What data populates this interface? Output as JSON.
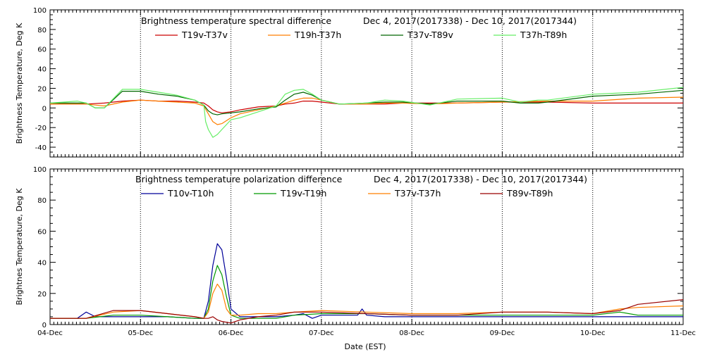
{
  "figure": {
    "xlabel": "Date (EST)"
  },
  "chart_data": [
    {
      "type": "line",
      "title": "Brightness temperature spectral difference",
      "subtitle": "Dec  4, 2017(2017338) - Dec 10, 2017(2017344)",
      "ylabel": "Brightness Temperature, Deg K",
      "xlabel": "",
      "xlim": [
        0,
        7
      ],
      "ylim": [
        -50,
        100
      ],
      "yticks": [
        -40,
        -20,
        0,
        20,
        40,
        60,
        80,
        100
      ],
      "xticks": [],
      "grid": "vertical dotted at day boundaries",
      "legend_placement": "top",
      "series": [
        {
          "name": "T19v-T37v",
          "color": "#cc0000",
          "x": [
            0,
            0.4,
            0.6,
            0.8,
            1.0,
            1.2,
            1.4,
            1.6,
            1.7,
            1.75,
            1.8,
            1.85,
            1.9,
            2.0,
            2.1,
            2.3,
            2.5,
            2.6,
            2.7,
            2.8,
            2.9,
            3.0,
            3.2,
            3.5,
            3.7,
            3.9,
            4.2,
            4.5,
            5.0,
            5.5,
            6.0,
            6.5,
            7.0
          ],
          "y": [
            4,
            4,
            5,
            7,
            8,
            7,
            7,
            6,
            5,
            2,
            -2,
            -4,
            -5,
            -4,
            -2,
            1,
            2,
            4,
            5,
            7,
            7,
            6,
            4,
            4,
            4,
            5,
            5,
            5,
            6,
            6,
            5,
            5,
            5
          ]
        },
        {
          "name": "T19h-T37h",
          "color": "#ff7f00",
          "x": [
            0,
            0.4,
            0.5,
            0.6,
            0.8,
            1.0,
            1.2,
            1.4,
            1.6,
            1.7,
            1.75,
            1.8,
            1.85,
            1.9,
            2.0,
            2.1,
            2.3,
            2.5,
            2.6,
            2.7,
            2.8,
            2.9,
            3.0,
            3.2,
            3.5,
            3.7,
            3.9,
            4.2,
            4.5,
            5.0,
            5.5,
            6.0,
            6.5,
            7.0
          ],
          "y": [
            4,
            4,
            3,
            2,
            6,
            8,
            7,
            6,
            5,
            2,
            -6,
            -14,
            -17,
            -16,
            -10,
            -6,
            -2,
            2,
            5,
            8,
            10,
            10,
            8,
            4,
            4,
            5,
            5,
            4,
            5,
            6,
            7,
            7,
            10,
            11
          ]
        },
        {
          "name": "T37v-T89v",
          "color": "#006600",
          "x": [
            0,
            0.4,
            0.5,
            0.6,
            0.8,
            1.0,
            1.2,
            1.4,
            1.6,
            1.7,
            1.75,
            1.8,
            1.85,
            1.9,
            2.0,
            2.1,
            2.3,
            2.5,
            2.6,
            2.7,
            2.8,
            2.9,
            3.0,
            3.2,
            3.5,
            3.7,
            3.9,
            4.2,
            4.5,
            5.0,
            5.2,
            5.4,
            5.5,
            6.0,
            6.5,
            7.0
          ],
          "y": [
            5,
            5,
            0,
            0,
            17,
            17,
            14,
            12,
            8,
            3,
            -3,
            -6,
            -7,
            -6,
            -5,
            -4,
            -1,
            1,
            8,
            14,
            16,
            13,
            8,
            4,
            5,
            6,
            6,
            4,
            7,
            7,
            5,
            5,
            6,
            12,
            14,
            18
          ]
        },
        {
          "name": "T37h-T89h",
          "color": "#66ee66",
          "x": [
            0,
            0.3,
            0.4,
            0.5,
            0.6,
            0.8,
            1.0,
            1.2,
            1.4,
            1.6,
            1.7,
            1.72,
            1.75,
            1.8,
            1.85,
            1.9,
            2.0,
            2.1,
            2.3,
            2.5,
            2.6,
            2.7,
            2.8,
            2.9,
            3.0,
            3.2,
            3.5,
            3.7,
            3.9,
            4.2,
            4.5,
            5.0,
            5.2,
            5.4,
            5.5,
            6.0,
            6.5,
            7.0
          ],
          "y": [
            5,
            7,
            5,
            0,
            0,
            19,
            19,
            16,
            13,
            8,
            3,
            -14,
            -22,
            -30,
            -27,
            -22,
            -12,
            -10,
            -4,
            2,
            14,
            18,
            19,
            14,
            8,
            4,
            5,
            8,
            7,
            3,
            9,
            10,
            6,
            8,
            8,
            14,
            16,
            21
          ]
        }
      ]
    },
    {
      "type": "line",
      "title": "Brightness temperature polarization difference",
      "subtitle": "Dec  4, 2017(2017338) - Dec 10, 2017(2017344)",
      "ylabel": "Brightnes Temperature, Deg K",
      "xlabel": "Date (EST)",
      "xlim": [
        0,
        7
      ],
      "ylim": [
        0,
        100
      ],
      "yticks": [
        0,
        20,
        40,
        60,
        80,
        100
      ],
      "xticks": [
        "04-Dec",
        "05-Dec",
        "06-Dec",
        "07-Dec",
        "08-Dec",
        "09-Dec",
        "10-Dec",
        "11-Dec"
      ],
      "grid": "vertical dotted at day boundaries",
      "legend_placement": "top",
      "series": [
        {
          "name": "T10v-T10h",
          "color": "#000099",
          "x": [
            0,
            0.3,
            0.4,
            0.5,
            0.7,
            1.0,
            1.3,
            1.6,
            1.7,
            1.75,
            1.8,
            1.85,
            1.9,
            1.95,
            2.0,
            2.1,
            2.2,
            2.5,
            2.7,
            2.8,
            2.9,
            3.0,
            3.2,
            3.4,
            3.45,
            3.5,
            3.7,
            4.0,
            4.5,
            5.0,
            5.5,
            6.0,
            6.5,
            7.0
          ],
          "y": [
            4,
            4,
            8,
            5,
            5,
            5,
            5,
            4,
            4,
            15,
            38,
            52,
            48,
            30,
            10,
            5,
            5,
            5,
            6,
            7,
            4,
            6,
            6,
            6,
            10,
            6,
            5,
            5,
            5,
            5,
            5,
            5,
            5,
            5
          ]
        },
        {
          "name": "T19v-T19h",
          "color": "#009900",
          "x": [
            0,
            0.4,
            0.7,
            1.0,
            1.3,
            1.6,
            1.7,
            1.75,
            1.8,
            1.85,
            1.9,
            1.95,
            2.0,
            2.1,
            2.3,
            2.5,
            2.7,
            3.0,
            3.5,
            4.0,
            4.5,
            5.0,
            5.5,
            6.0,
            6.3,
            6.5,
            7.0
          ],
          "y": [
            4,
            4,
            6,
            6,
            5,
            4,
            4,
            10,
            28,
            38,
            32,
            18,
            6,
            4,
            4,
            4,
            6,
            7,
            7,
            6,
            6,
            6,
            6,
            6,
            8,
            6,
            6
          ]
        },
        {
          "name": "T37v-T37h",
          "color": "#ff7f00",
          "x": [
            0,
            0.4,
            0.7,
            1.0,
            1.3,
            1.6,
            1.7,
            1.75,
            1.8,
            1.85,
            1.9,
            1.95,
            2.0,
            2.1,
            2.3,
            2.5,
            2.7,
            3.0,
            3.5,
            4.0,
            4.5,
            5.0,
            5.5,
            6.0,
            6.3,
            6.5,
            7.0
          ],
          "y": [
            4,
            4,
            8,
            9,
            7,
            5,
            4,
            8,
            20,
            26,
            22,
            10,
            6,
            6,
            7,
            7,
            8,
            9,
            8,
            7,
            7,
            8,
            8,
            7,
            10,
            11,
            12
          ]
        },
        {
          "name": "T89v-T89h",
          "color": "#990000",
          "x": [
            0,
            0.4,
            0.7,
            1.0,
            1.3,
            1.6,
            1.7,
            1.75,
            1.8,
            1.85,
            1.9,
            2.0,
            2.1,
            2.3,
            2.5,
            2.7,
            3.0,
            3.5,
            4.0,
            4.5,
            5.0,
            5.5,
            6.0,
            6.3,
            6.5,
            7.0
          ],
          "y": [
            4,
            4,
            9,
            9,
            7,
            5,
            4,
            4,
            5,
            3,
            2,
            1,
            3,
            5,
            6,
            8,
            8,
            7,
            6,
            6,
            8,
            8,
            7,
            9,
            13,
            16
          ]
        }
      ]
    }
  ]
}
